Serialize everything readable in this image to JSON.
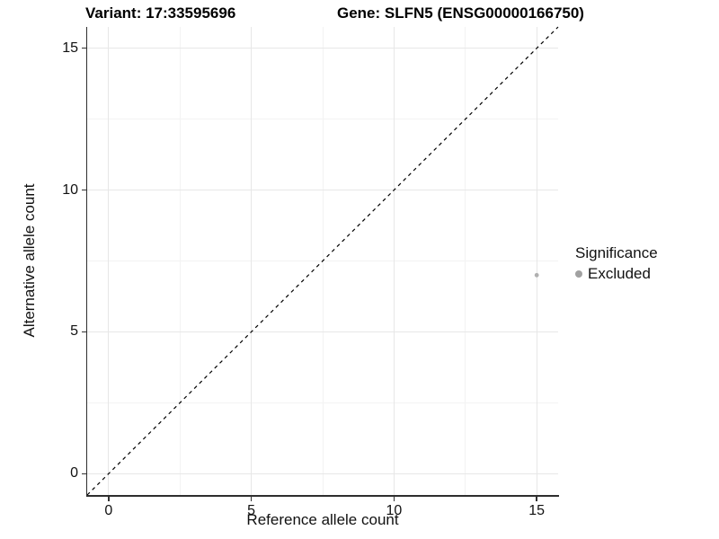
{
  "titles": {
    "variant": "Variant: 17:33595696",
    "gene": "Gene: SLFN5 (ENSG00000166750)"
  },
  "axes": {
    "x_label": "Reference allele count",
    "y_label": "Alternative allele count"
  },
  "legend": {
    "title": "Significance",
    "position": "right",
    "items": [
      {
        "label": "Excluded",
        "color": "#a1a1a1",
        "marker": "dot-icon"
      }
    ]
  },
  "colors": {
    "background": "#ffffff",
    "axis_line": "#2e2e2e",
    "tick_mark": "#333333",
    "grid_major": "#e7e7e7",
    "grid_minor": "#f3f3f3",
    "identity_line": "#000000",
    "excluded_point": "#b0b0b0"
  },
  "chart_data": {
    "type": "scatter",
    "title_left": "Variant: 17:33595696",
    "title_right": "Gene: SLFN5 (ENSG00000166750)",
    "xlabel": "Reference allele count",
    "ylabel": "Alternative allele count",
    "xlim": [
      -0.75,
      15.75
    ],
    "ylim": [
      -0.75,
      15.75
    ],
    "x_ticks": [
      0,
      5,
      10,
      15
    ],
    "y_ticks": [
      0,
      5,
      10,
      15
    ],
    "x_minor": [
      2.5,
      7.5,
      12.5
    ],
    "y_minor": [
      2.5,
      7.5,
      12.5
    ],
    "grid": true,
    "identity_line": {
      "equation": "y = x",
      "style": "dashed",
      "color": "#000000"
    },
    "series": [
      {
        "name": "Excluded",
        "color": "#b0b0b0",
        "points": [
          {
            "x": 15,
            "y": 7
          }
        ],
        "point_radius": 2.4
      }
    ],
    "legend_title": "Significance",
    "legend_position": "right"
  }
}
